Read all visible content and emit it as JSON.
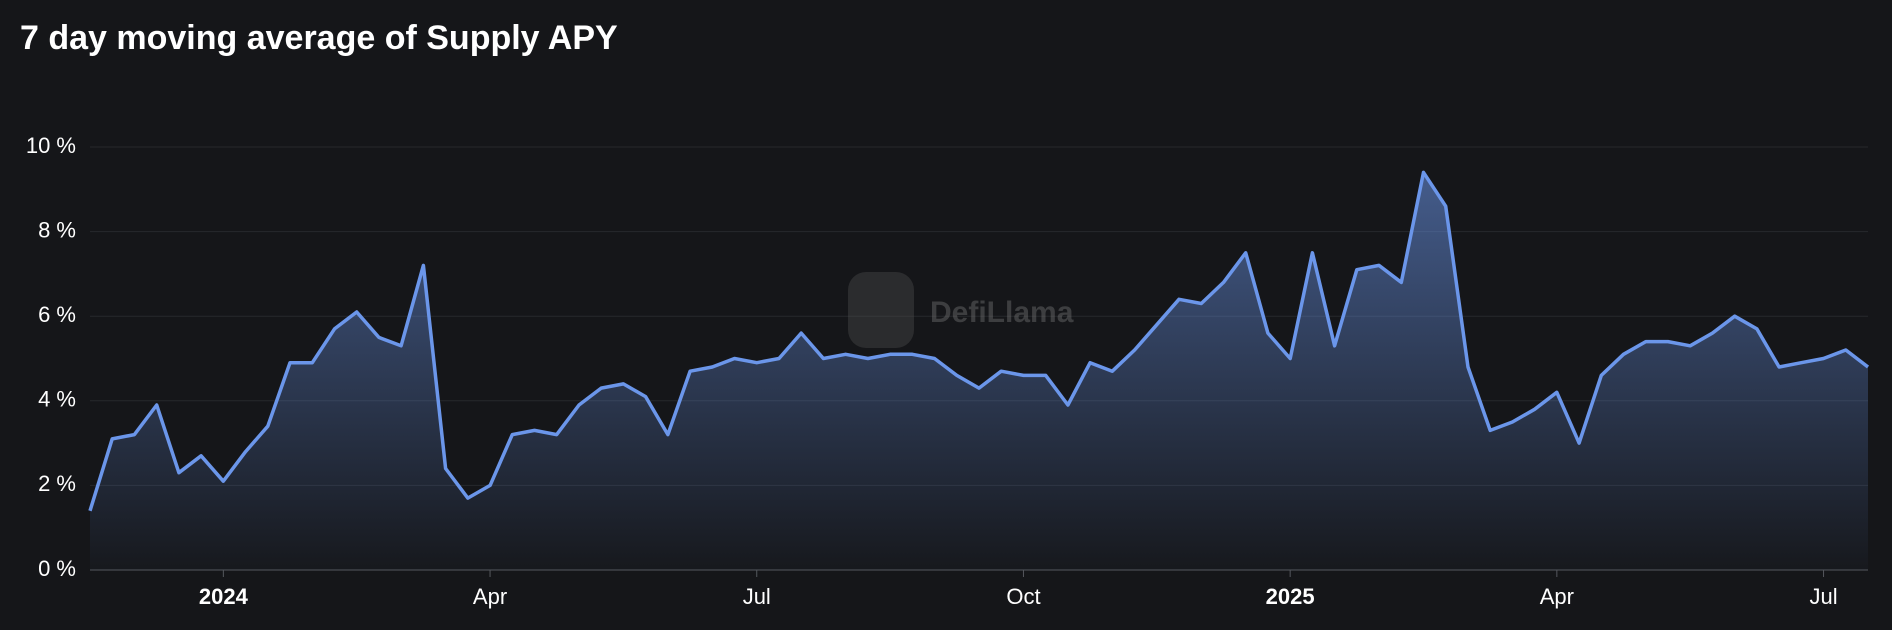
{
  "chart_data": {
    "type": "area",
    "title": "7 day moving average of Supply APY",
    "watermark": "DefiLlama",
    "x": [
      "2023-11",
      "2023-11",
      "2023-12",
      "2023-12",
      "2023-12",
      "2023-12",
      "2024-01",
      "2024-01",
      "2024-01",
      "2024-01",
      "2024-02",
      "2024-02",
      "2024-02",
      "2024-02",
      "2024-03",
      "2024-03",
      "2024-03",
      "2024-03",
      "2024-04",
      "2024-04",
      "2024-04",
      "2024-04",
      "2024-05",
      "2024-05",
      "2024-05",
      "2024-05",
      "2024-06",
      "2024-06",
      "2024-06",
      "2024-06",
      "2024-07",
      "2024-07",
      "2024-07",
      "2024-07",
      "2024-08",
      "2024-08",
      "2024-08",
      "2024-08",
      "2024-09",
      "2024-09",
      "2024-09",
      "2024-09",
      "2024-10",
      "2024-10",
      "2024-10",
      "2024-10",
      "2024-11",
      "2024-11",
      "2024-11",
      "2024-11",
      "2024-12",
      "2024-12",
      "2024-12",
      "2024-12",
      "2025-01",
      "2025-01",
      "2025-01",
      "2025-01",
      "2025-02",
      "2025-02",
      "2025-02",
      "2025-02",
      "2025-03",
      "2025-03",
      "2025-03",
      "2025-03",
      "2025-04",
      "2025-04",
      "2025-04",
      "2025-04",
      "2025-05",
      "2025-05",
      "2025-05",
      "2025-05",
      "2025-06",
      "2025-06",
      "2025-06",
      "2025-06",
      "2025-07",
      "2025-07",
      "2025-07"
    ],
    "series": [
      {
        "name": "Supply APY",
        "color": "#6b96ea",
        "values": [
          1.4,
          3.1,
          3.2,
          3.9,
          2.3,
          2.7,
          2.1,
          2.8,
          3.4,
          4.9,
          4.9,
          5.7,
          6.1,
          5.5,
          5.3,
          7.2,
          2.4,
          1.7,
          2.0,
          3.2,
          3.3,
          3.2,
          3.9,
          4.3,
          4.4,
          4.1,
          3.2,
          4.7,
          4.8,
          5.0,
          4.9,
          5.0,
          5.6,
          5.0,
          5.1,
          5.0,
          5.1,
          5.1,
          5.0,
          4.6,
          4.3,
          4.7,
          4.6,
          4.6,
          3.9,
          4.9,
          4.7,
          5.2,
          5.8,
          6.4,
          6.3,
          6.8,
          7.5,
          5.6,
          5.0,
          7.5,
          5.3,
          7.1,
          7.2,
          6.8,
          9.4,
          8.6,
          4.8,
          3.3,
          3.5,
          3.8,
          4.2,
          3.0,
          4.6,
          5.1,
          5.4,
          5.4,
          5.3,
          5.6,
          6.0,
          5.7,
          4.8,
          4.9,
          5.0,
          5.2,
          4.8
        ]
      }
    ],
    "ylim": [
      0,
      10
    ],
    "yticks": [
      {
        "value": 0,
        "label": "0 %"
      },
      {
        "value": 2,
        "label": "2 %"
      },
      {
        "value": 4,
        "label": "4 %"
      },
      {
        "value": 6,
        "label": "6 %"
      },
      {
        "value": 8,
        "label": "8 %"
      },
      {
        "value": 10,
        "label": "10 %"
      }
    ],
    "xticks": [
      {
        "value": "2024-01",
        "label": "2024"
      },
      {
        "value": "2024-04",
        "label": "Apr"
      },
      {
        "value": "2024-07",
        "label": "Jul"
      },
      {
        "value": "2024-10",
        "label": "Oct"
      },
      {
        "value": "2025-01",
        "label": "2025"
      },
      {
        "value": "2025-04",
        "label": "Apr"
      },
      {
        "value": "2025-07",
        "label": "Jul"
      }
    ],
    "grid": true
  }
}
